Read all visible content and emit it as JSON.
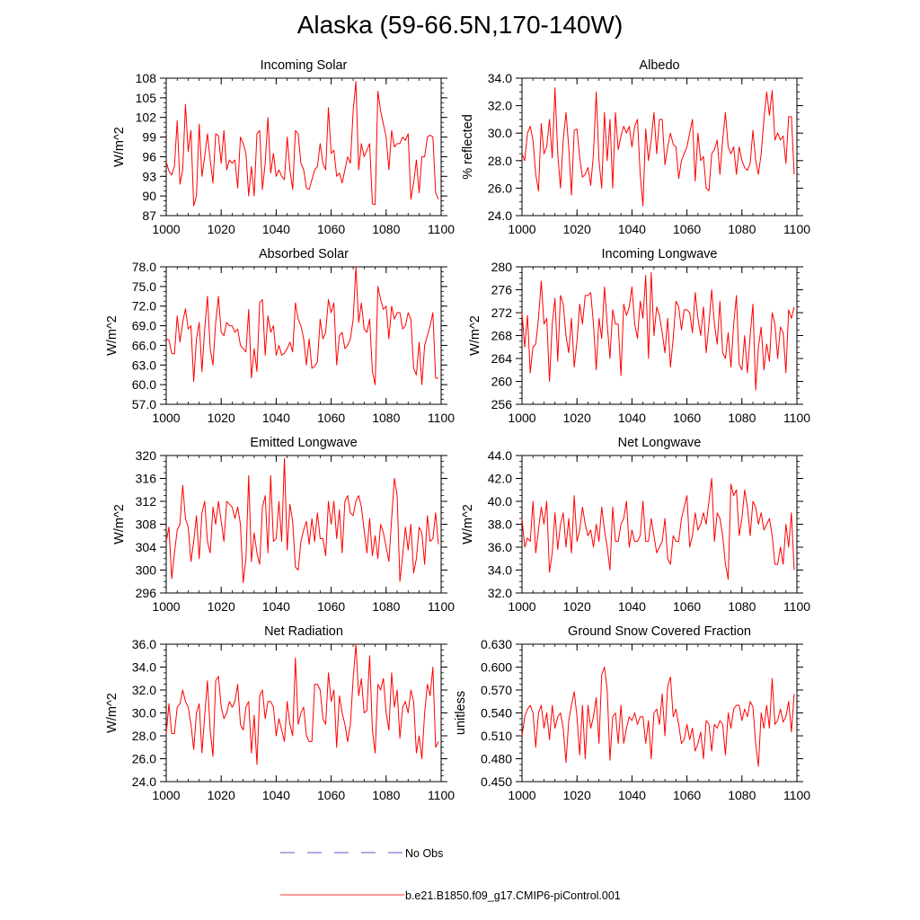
{
  "figure": {
    "title": "Alaska (59-66.5N,170-140W)"
  },
  "legend": {
    "items": [
      {
        "label": "No Obs",
        "color": "#5555cc",
        "style": "dashed"
      },
      {
        "label": "b.e21.B1850.f09_g17.CMIP6-piControl.001",
        "color": "#ff3333",
        "style": "solid"
      }
    ]
  },
  "chart_data": [
    {
      "type": "line",
      "title": "Incoming Solar",
      "xlabel": "",
      "ylabel": "W/m^2",
      "xlim": [
        1000,
        1100
      ],
      "ylim": [
        87,
        108
      ],
      "xticks": [
        "1000",
        "1020",
        "1040",
        "1060",
        "1080",
        "1100"
      ],
      "yticks": [
        "87",
        "90",
        "93",
        "96",
        "99",
        "102",
        "105",
        "108"
      ],
      "series": [
        {
          "color": "#ff0000",
          "x_start": 1000,
          "values": [
            95.2,
            93.8,
            93.2,
            94.6,
            101.5,
            91.8,
            94.0,
            104.0,
            96.8,
            100.0,
            88.5,
            90.0,
            101.0,
            93.0,
            96.0,
            99.5,
            95.5,
            92.0,
            99.5,
            99.2,
            95.0,
            100.0,
            94.0,
            95.5,
            95.0,
            95.5,
            91.2,
            99.0,
            98.0,
            96.5,
            90.0,
            94.5,
            90.0,
            99.5,
            100.0,
            91.0,
            95.0,
            102.0,
            93.5,
            96.5,
            93.0,
            94.0,
            93.0,
            92.5,
            99.0,
            94.0,
            91.0,
            100.0,
            99.5,
            95.0,
            94.0,
            91.2,
            91.0,
            92.5,
            94.0,
            94.5,
            98.0,
            95.0,
            94.0,
            103.5,
            96.5,
            97.0,
            93.0,
            93.5,
            92.0,
            94.0,
            96.0,
            95.0,
            103.0,
            107.5,
            94.0,
            98.0,
            96.0,
            97.0,
            98.0,
            88.8,
            88.7,
            106.0,
            103.0,
            101.0,
            99.0,
            94.0,
            100.0,
            97.5,
            98.0,
            98.0,
            99.0,
            98.5,
            99.5,
            89.5,
            92.0,
            95.5,
            90.5,
            96.0,
            96.0,
            99.0,
            99.3,
            99.0,
            90.5,
            89.5
          ]
        }
      ]
    },
    {
      "type": "line",
      "title": "Albedo",
      "xlabel": "",
      "ylabel": "% reflected",
      "xlim": [
        1000,
        1100
      ],
      "ylim": [
        24.0,
        34.0
      ],
      "xticks": [
        "1000",
        "1020",
        "1040",
        "1060",
        "1080",
        "1100"
      ],
      "yticks": [
        "24.0",
        "26.0",
        "28.0",
        "30.0",
        "32.0",
        "34.0"
      ],
      "series": [
        {
          "color": "#ff0000",
          "x_start": 1000,
          "values": [
            28.5,
            28.0,
            30.0,
            30.5,
            29.5,
            27.0,
            25.8,
            30.7,
            28.5,
            29.0,
            31.0,
            28.2,
            33.3,
            28.5,
            26.0,
            29.5,
            31.5,
            29.0,
            25.5,
            30.2,
            30.3,
            28.2,
            26.8,
            27.0,
            27.5,
            26.2,
            28.5,
            33.0,
            28.0,
            26.0,
            31.5,
            28.0,
            31.0,
            26.0,
            31.5,
            28.8,
            29.8,
            30.5,
            30.0,
            30.5,
            29.0,
            30.5,
            31.0,
            27.0,
            24.7,
            30.3,
            28.0,
            29.5,
            31.5,
            28.5,
            31.0,
            31.0,
            27.7,
            29.0,
            30.0,
            29.2,
            29.0,
            26.7,
            28.0,
            28.5,
            29.0,
            30.0,
            31.0,
            26.5,
            30.0,
            28.0,
            28.3,
            26.0,
            25.8,
            28.5,
            28.8,
            29.5,
            27.0,
            29.5,
            31.5,
            29.0,
            28.5,
            29.0,
            27.0,
            29.0,
            28.0,
            27.5,
            27.3,
            27.8,
            30.2,
            28.0,
            27.0,
            28.5,
            31.0,
            33.0,
            31.3,
            33.1,
            29.5,
            30.0,
            29.5,
            29.8,
            27.8,
            31.2,
            31.2,
            27.0
          ]
        }
      ]
    },
    {
      "type": "line",
      "title": "Absorbed Solar",
      "xlabel": "",
      "ylabel": "W/m^2",
      "xlim": [
        1000,
        1100
      ],
      "ylim": [
        57.0,
        78.0
      ],
      "xticks": [
        "1000",
        "1020",
        "1040",
        "1060",
        "1080",
        "1100"
      ],
      "yticks": [
        "57.0",
        "60.0",
        "63.0",
        "66.0",
        "69.0",
        "72.0",
        "75.0",
        "78.0"
      ],
      "series": [
        {
          "color": "#ff0000",
          "x_start": 1000,
          "values": [
            67.0,
            66.8,
            64.8,
            64.7,
            70.5,
            66.5,
            69.5,
            71.6,
            68.5,
            69.0,
            60.5,
            67.0,
            69.5,
            62.0,
            68.5,
            73.5,
            65.5,
            63.0,
            69.5,
            73.5,
            68.0,
            67.5,
            69.5,
            69.0,
            69.0,
            68.0,
            68.5,
            66.0,
            65.5,
            65.0,
            71.5,
            61.0,
            65.5,
            62.0,
            72.5,
            73.0,
            64.5,
            70.5,
            68.0,
            69.0,
            64.5,
            66.0,
            64.5,
            64.8,
            65.5,
            66.5,
            65.0,
            72.5,
            70.0,
            69.0,
            67.0,
            63.0,
            67.0,
            62.5,
            62.8,
            63.5,
            70.0,
            67.0,
            68.0,
            73.0,
            71.0,
            72.5,
            63.0,
            67.5,
            68.0,
            65.5,
            66.0,
            67.0,
            70.0,
            78.0,
            69.5,
            72.5,
            68.5,
            68.0,
            70.0,
            62.0,
            60.0,
            75.0,
            73.0,
            71.5,
            72.0,
            67.0,
            72.0,
            70.0,
            71.0,
            71.0,
            68.5,
            69.0,
            71.0,
            70.0,
            62.5,
            61.5,
            66.5,
            60.0,
            66.0,
            67.5,
            69.0,
            71.0,
            61.0,
            61.0
          ]
        }
      ]
    },
    {
      "type": "line",
      "title": "Incoming Longwave",
      "xlabel": "",
      "ylabel": "W/m^2",
      "xlim": [
        1000,
        1100
      ],
      "ylim": [
        256,
        280
      ],
      "xticks": [
        "1000",
        "1020",
        "1040",
        "1060",
        "1080",
        "1100"
      ],
      "yticks": [
        "256",
        "260",
        "264",
        "268",
        "272",
        "276",
        "280"
      ],
      "series": [
        {
          "color": "#ff0000",
          "x_start": 1000,
          "values": [
            272.0,
            266.0,
            271.5,
            261.5,
            266.0,
            266.5,
            271.0,
            277.5,
            270.0,
            271.0,
            260.0,
            270.0,
            274.5,
            263.5,
            275.0,
            273.5,
            268.0,
            265.0,
            271.0,
            262.5,
            267.0,
            273.5,
            270.0,
            275.0,
            275.0,
            275.5,
            270.0,
            262.0,
            271.0,
            267.5,
            276.5,
            270.0,
            264.0,
            272.5,
            270.0,
            270.0,
            261.0,
            273.5,
            271.5,
            273.0,
            276.5,
            270.0,
            267.5,
            274.0,
            271.0,
            278.5,
            264.0,
            279.0,
            268.0,
            273.0,
            271.5,
            268.5,
            265.0,
            271.0,
            262.5,
            267.5,
            274.0,
            273.0,
            269.0,
            272.5,
            272.5,
            272.0,
            268.5,
            275.5,
            271.0,
            268.0,
            273.0,
            265.0,
            270.0,
            276.0,
            270.0,
            266.5,
            274.0,
            265.0,
            264.0,
            268.5,
            262.5,
            270.0,
            275.0,
            263.0,
            262.0,
            268.0,
            261.5,
            268.0,
            273.5,
            258.5,
            266.0,
            269.5,
            262.0,
            266.5,
            263.5,
            272.0,
            270.0,
            264.0,
            269.5,
            268.5,
            261.5,
            272.5,
            271.0,
            273.0
          ]
        }
      ]
    },
    {
      "type": "line",
      "title": "Emitted Longwave",
      "xlabel": "",
      "ylabel": "W/m^2",
      "xlim": [
        1000,
        1100
      ],
      "ylim": [
        296,
        320
      ],
      "xticks": [
        "1000",
        "1020",
        "1040",
        "1060",
        "1080",
        "1100"
      ],
      "yticks": [
        "296",
        "300",
        "304",
        "308",
        "312",
        "316",
        "320"
      ],
      "series": [
        {
          "color": "#ff0000",
          "x_start": 1000,
          "values": [
            305.0,
            307.5,
            298.5,
            303.0,
            307.0,
            308.0,
            314.8,
            309.0,
            307.5,
            301.5,
            305.0,
            309.5,
            302.0,
            310.0,
            312.0,
            305.0,
            303.0,
            311.0,
            308.0,
            312.0,
            308.5,
            305.0,
            312.0,
            311.5,
            311.0,
            309.0,
            311.0,
            308.0,
            297.8,
            302.0,
            316.5,
            301.5,
            306.5,
            303.0,
            301.0,
            311.0,
            313.0,
            303.0,
            316.5,
            305.0,
            305.5,
            312.0,
            305.0,
            319.5,
            303.5,
            311.5,
            308.5,
            300.5,
            300.0,
            305.0,
            307.0,
            308.5,
            304.5,
            309.0,
            305.0,
            310.0,
            305.5,
            305.5,
            302.5,
            312.0,
            308.0,
            312.0,
            305.5,
            310.5,
            303.0,
            312.0,
            313.0,
            310.0,
            309.5,
            312.0,
            313.0,
            311.0,
            307.0,
            303.0,
            309.0,
            302.5,
            306.0,
            302.0,
            308.0,
            306.5,
            304.0,
            301.5,
            309.0,
            316.0,
            313.0,
            298.0,
            302.5,
            307.5,
            303.5,
            308.0,
            299.5,
            302.0,
            307.5,
            306.5,
            301.0,
            309.5,
            305.0,
            305.5,
            310.0,
            304.5
          ]
        }
      ]
    },
    {
      "type": "line",
      "title": "Net Longwave",
      "xlabel": "",
      "ylabel": "W/m^2",
      "xlim": [
        1000,
        1100
      ],
      "ylim": [
        32.0,
        44.0
      ],
      "xticks": [
        "1000",
        "1020",
        "1040",
        "1060",
        "1080",
        "1100"
      ],
      "yticks": [
        "32.0",
        "34.0",
        "36.0",
        "38.0",
        "40.0",
        "42.0",
        "44.0"
      ],
      "series": [
        {
          "color": "#ff0000",
          "x_start": 1000,
          "values": [
            38.5,
            36.0,
            36.8,
            36.5,
            40.0,
            35.5,
            37.5,
            39.5,
            38.0,
            40.0,
            33.8,
            35.5,
            39.0,
            35.8,
            38.0,
            39.0,
            36.0,
            38.5,
            35.5,
            40.5,
            36.5,
            37.5,
            39.5,
            38.0,
            37.0,
            37.5,
            36.0,
            38.0,
            36.5,
            39.5,
            37.5,
            36.0,
            34.0,
            39.5,
            36.5,
            36.5,
            38.0,
            38.5,
            40.0,
            36.0,
            37.5,
            36.5,
            36.5,
            37.0,
            40.0,
            36.5,
            36.5,
            38.5,
            37.0,
            35.5,
            36.0,
            36.5,
            38.5,
            35.0,
            34.5,
            37.0,
            36.5,
            36.5,
            38.5,
            39.5,
            40.5,
            36.0,
            37.0,
            39.0,
            37.5,
            38.0,
            39.0,
            38.0,
            40.0,
            42.0,
            36.5,
            39.0,
            38.5,
            37.0,
            34.5,
            33.2,
            41.5,
            40.5,
            41.0,
            37.0,
            38.5,
            41.0,
            39.5,
            37.0,
            40.0,
            39.5,
            38.0,
            39.0,
            37.5,
            38.0,
            38.5,
            37.0,
            34.5,
            34.5,
            36.0,
            34.5,
            38.0,
            36.0,
            39.0,
            34.0
          ]
        }
      ]
    },
    {
      "type": "line",
      "title": "Net Radiation",
      "xlabel": "",
      "ylabel": "W/m^2",
      "xlim": [
        1000,
        1100
      ],
      "ylim": [
        24.0,
        36.0
      ],
      "xticks": [
        "1000",
        "1020",
        "1040",
        "1060",
        "1080",
        "1100"
      ],
      "yticks": [
        "24.0",
        "26.0",
        "28.0",
        "30.0",
        "32.0",
        "34.0",
        "36.0"
      ],
      "series": [
        {
          "color": "#ff0000",
          "x_start": 1000,
          "values": [
            28.2,
            30.8,
            28.2,
            28.2,
            30.5,
            30.8,
            32.0,
            31.0,
            30.5,
            29.0,
            26.8,
            30.0,
            30.8,
            26.5,
            29.8,
            32.8,
            28.5,
            26.2,
            32.8,
            33.2,
            30.5,
            29.5,
            30.0,
            31.0,
            30.5,
            31.0,
            32.5,
            29.0,
            28.5,
            30.5,
            31.0,
            26.5,
            29.8,
            25.5,
            31.5,
            32.0,
            29.5,
            31.0,
            31.0,
            30.5,
            28.0,
            29.5,
            28.5,
            27.5,
            31.0,
            29.0,
            28.0,
            34.8,
            29.0,
            30.0,
            30.5,
            28.0,
            27.5,
            27.5,
            32.5,
            32.5,
            32.0,
            29.5,
            29.0,
            33.5,
            31.0,
            32.0,
            27.0,
            31.5,
            30.0,
            29.0,
            27.5,
            29.0,
            33.0,
            36.0,
            31.5,
            33.0,
            30.0,
            30.2,
            35.0,
            28.5,
            26.5,
            32.5,
            32.0,
            33.0,
            30.0,
            28.5,
            33.5,
            30.5,
            32.0,
            27.8,
            30.5,
            31.0,
            30.0,
            32.0,
            31.0,
            26.5,
            28.0,
            26.0,
            30.0,
            32.5,
            31.5,
            34.0,
            27.0,
            27.5
          ]
        }
      ]
    },
    {
      "type": "line",
      "title": "Ground Snow Covered Fraction",
      "xlabel": "",
      "ylabel": "unitless",
      "xlim": [
        1000,
        1100
      ],
      "ylim": [
        0.45,
        0.63
      ],
      "xticks": [
        "1000",
        "1020",
        "1040",
        "1060",
        "1080",
        "1100"
      ],
      "yticks": [
        "0.450",
        "0.480",
        "0.510",
        "0.540",
        "0.570",
        "0.600",
        "0.630"
      ],
      "series": [
        {
          "color": "#ff0000",
          "x_start": 1000,
          "values": [
            0.51,
            0.535,
            0.545,
            0.55,
            0.54,
            0.495,
            0.54,
            0.55,
            0.52,
            0.54,
            0.505,
            0.55,
            0.52,
            0.535,
            0.54,
            0.52,
            0.475,
            0.53,
            0.55,
            0.568,
            0.535,
            0.485,
            0.55,
            0.48,
            0.55,
            0.52,
            0.535,
            0.56,
            0.5,
            0.59,
            0.6,
            0.57,
            0.478,
            0.535,
            0.54,
            0.5,
            0.55,
            0.5,
            0.52,
            0.535,
            0.53,
            0.54,
            0.525,
            0.535,
            0.535,
            0.5,
            0.53,
            0.48,
            0.54,
            0.545,
            0.525,
            0.565,
            0.51,
            0.575,
            0.587,
            0.535,
            0.545,
            0.525,
            0.5,
            0.505,
            0.525,
            0.505,
            0.52,
            0.49,
            0.5,
            0.515,
            0.48,
            0.53,
            0.525,
            0.49,
            0.525,
            0.52,
            0.53,
            0.525,
            0.485,
            0.54,
            0.52,
            0.545,
            0.55,
            0.55,
            0.53,
            0.545,
            0.535,
            0.555,
            0.548,
            0.5,
            0.47,
            0.54,
            0.52,
            0.55,
            0.52,
            0.585,
            0.525,
            0.53,
            0.545,
            0.528,
            0.535,
            0.555,
            0.515,
            0.565
          ]
        }
      ]
    }
  ]
}
